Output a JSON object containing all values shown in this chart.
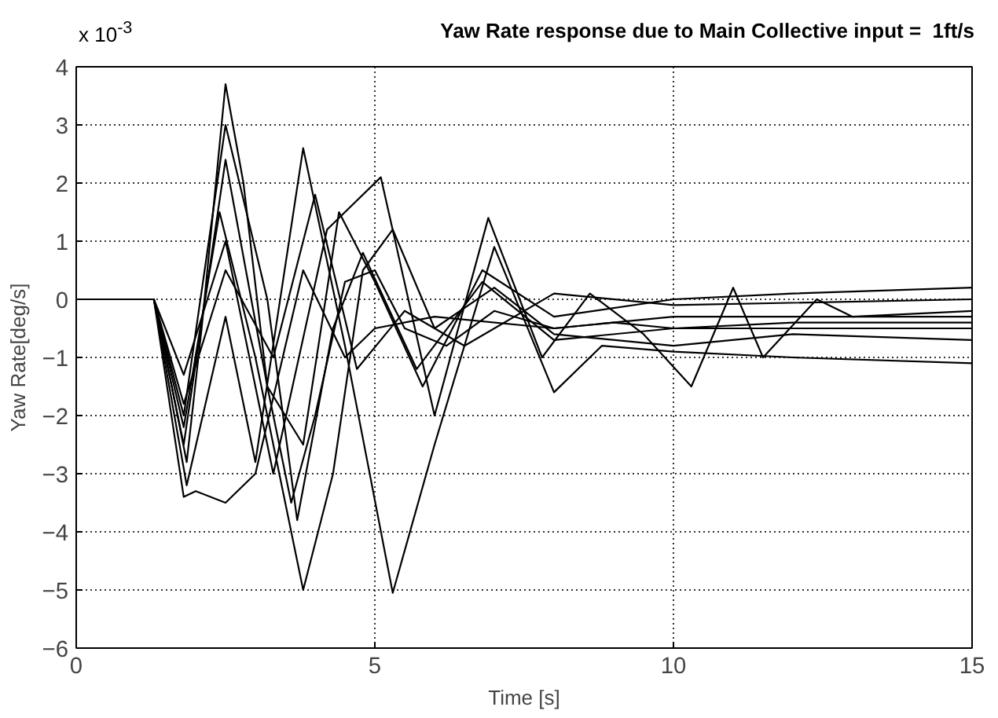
{
  "chart_data": {
    "type": "line",
    "title": "Yaw Rate response due to Main Collective input =  1ft/s",
    "xlabel": "Time [s]",
    "ylabel": "Yaw Rate[deg/s]",
    "annotations": [
      "x 10$^{-3}$"
    ],
    "xlim": [
      0,
      15
    ],
    "xticks": [
      0,
      5,
      10,
      15
    ],
    "ylim": [
      -6,
      4
    ],
    "yticks": [
      -6,
      -5,
      -4,
      -3,
      -2,
      -1,
      0,
      1,
      2,
      3,
      4
    ],
    "grid": true,
    "marker": "none",
    "line_style": "solid",
    "series": [
      {
        "color": "#000000",
        "x": [
          0,
          1.3,
          1.6,
          1.85,
          2.1,
          2.5,
          2.8,
          3.2,
          3.6,
          4.0,
          4.5,
          5.0,
          5.5,
          6.2,
          7,
          8,
          9,
          10,
          12,
          15
        ],
        "values": [
          0,
          0,
          -1.5,
          -2.8,
          -0.5,
          3.7,
          2.0,
          -1.5,
          -3.5,
          -2.0,
          0.3,
          0.5,
          -0.5,
          -0.8,
          -0.2,
          -0.5,
          -0.4,
          -0.5,
          -0.4,
          -0.4
        ]
      },
      {
        "color": "#000000",
        "x": [
          0,
          1.3,
          1.8,
          2.4,
          3.0,
          3.8,
          4.3,
          4.8,
          5.3,
          6.0,
          7.0,
          8,
          10,
          12,
          15
        ],
        "values": [
          0,
          0,
          -2.2,
          1.5,
          -1.0,
          -5.0,
          -3.0,
          0.5,
          1.2,
          -0.5,
          0.2,
          -0.6,
          -0.8,
          -0.6,
          -0.7
        ]
      },
      {
        "color": "#000000",
        "x": [
          0,
          1.3,
          1.85,
          2.5,
          3.0,
          3.8,
          4.5,
          5.3,
          6.0,
          7.0,
          8.0,
          8.8,
          10,
          12,
          15
        ],
        "values": [
          0,
          0,
          -3.2,
          -0.3,
          -2.8,
          2.6,
          -0.8,
          -5.05,
          -2.5,
          0.9,
          -1.6,
          -0.8,
          -0.9,
          -1.0,
          -1.1
        ]
      },
      {
        "color": "#000000",
        "x": [
          0,
          1.3,
          1.8,
          2.5,
          3.3,
          4.2,
          5.1,
          6.0,
          6.9,
          7.8,
          8.6,
          9.5,
          10.3,
          11,
          11.5,
          12.4,
          13,
          15
        ],
        "values": [
          0,
          0,
          -1.3,
          1.0,
          -3.0,
          1.2,
          2.1,
          -2.0,
          1.4,
          -1.0,
          0.1,
          -0.6,
          -1.5,
          0.2,
          -1.0,
          0,
          -0.3,
          -0.2
        ]
      },
      {
        "color": "#000000",
        "x": [
          0,
          1.3,
          1.8,
          2.0,
          2.5,
          3.0,
          3.8,
          4.5,
          5.0,
          6,
          8,
          10,
          15
        ],
        "values": [
          0,
          0,
          -3.4,
          -3.3,
          -3.5,
          -3.0,
          0.5,
          -1.0,
          -0.5,
          -0.3,
          -0.5,
          -0.3,
          -0.3
        ]
      },
      {
        "color": "#000000",
        "x": [
          0,
          1.3,
          1.8,
          2.5,
          3.2,
          3.8,
          4.4,
          5.0,
          5.8,
          6.8,
          8,
          10,
          12,
          15
        ],
        "values": [
          0,
          0,
          -2.5,
          2.4,
          -1.5,
          -2.5,
          1.5,
          0.3,
          -1.5,
          0.5,
          -0.3,
          0,
          0.1,
          0.2
        ]
      },
      {
        "color": "#000000",
        "x": [
          0,
          1.3,
          1.8,
          2.5,
          3.3,
          4.0,
          4.7,
          5.5,
          6.5,
          8,
          10,
          15
        ],
        "values": [
          0,
          0,
          -1.8,
          0.5,
          -1.0,
          1.8,
          -1.2,
          -0.2,
          -0.8,
          0.1,
          -0.1,
          0
        ]
      },
      {
        "color": "#000000",
        "x": [
          0,
          1.3,
          1.8,
          2.5,
          3.2,
          3.7,
          4.3,
          4.8,
          5.7,
          6.8,
          8,
          10,
          15
        ],
        "values": [
          0,
          0,
          -2.0,
          3.0,
          0,
          -3.8,
          -0.5,
          0.8,
          -1.2,
          0.3,
          -0.7,
          -0.5,
          -0.5
        ]
      }
    ]
  }
}
